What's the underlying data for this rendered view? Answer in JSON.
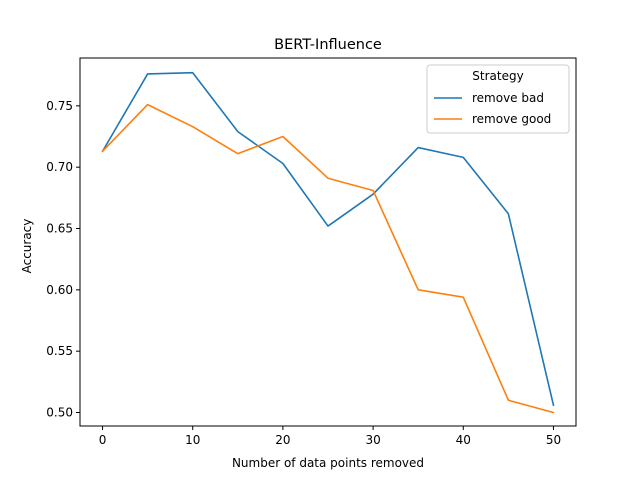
{
  "chart_data": {
    "type": "line",
    "title": "BERT-Influence",
    "xlabel": "Number of data points removed",
    "ylabel": "Accuracy",
    "x": [
      0,
      5,
      10,
      15,
      20,
      25,
      30,
      35,
      40,
      45,
      50
    ],
    "xlim": [
      -2.5,
      52.5
    ],
    "ylim": [
      0.489,
      0.789
    ],
    "xticks": [
      0,
      10,
      20,
      30,
      40,
      50
    ],
    "yticks": [
      0.5,
      0.55,
      0.6,
      0.65,
      0.7,
      0.75
    ],
    "xtick_labels": [
      "0",
      "10",
      "20",
      "30",
      "40",
      "50"
    ],
    "ytick_labels": [
      "0.50",
      "0.55",
      "0.60",
      "0.65",
      "0.70",
      "0.75"
    ],
    "grid": false,
    "legend": {
      "title": "Strategy",
      "placement": "top-right"
    },
    "series": [
      {
        "name": "remove bad",
        "color": "#1f77b4",
        "values": [
          0.713,
          0.776,
          0.777,
          0.729,
          0.703,
          0.652,
          0.678,
          0.716,
          0.708,
          0.662,
          0.506
        ]
      },
      {
        "name": "remove good",
        "color": "#ff7f0e",
        "values": [
          0.713,
          0.751,
          0.733,
          0.711,
          0.725,
          0.691,
          0.681,
          0.6,
          0.594,
          0.51,
          0.5
        ]
      }
    ]
  }
}
